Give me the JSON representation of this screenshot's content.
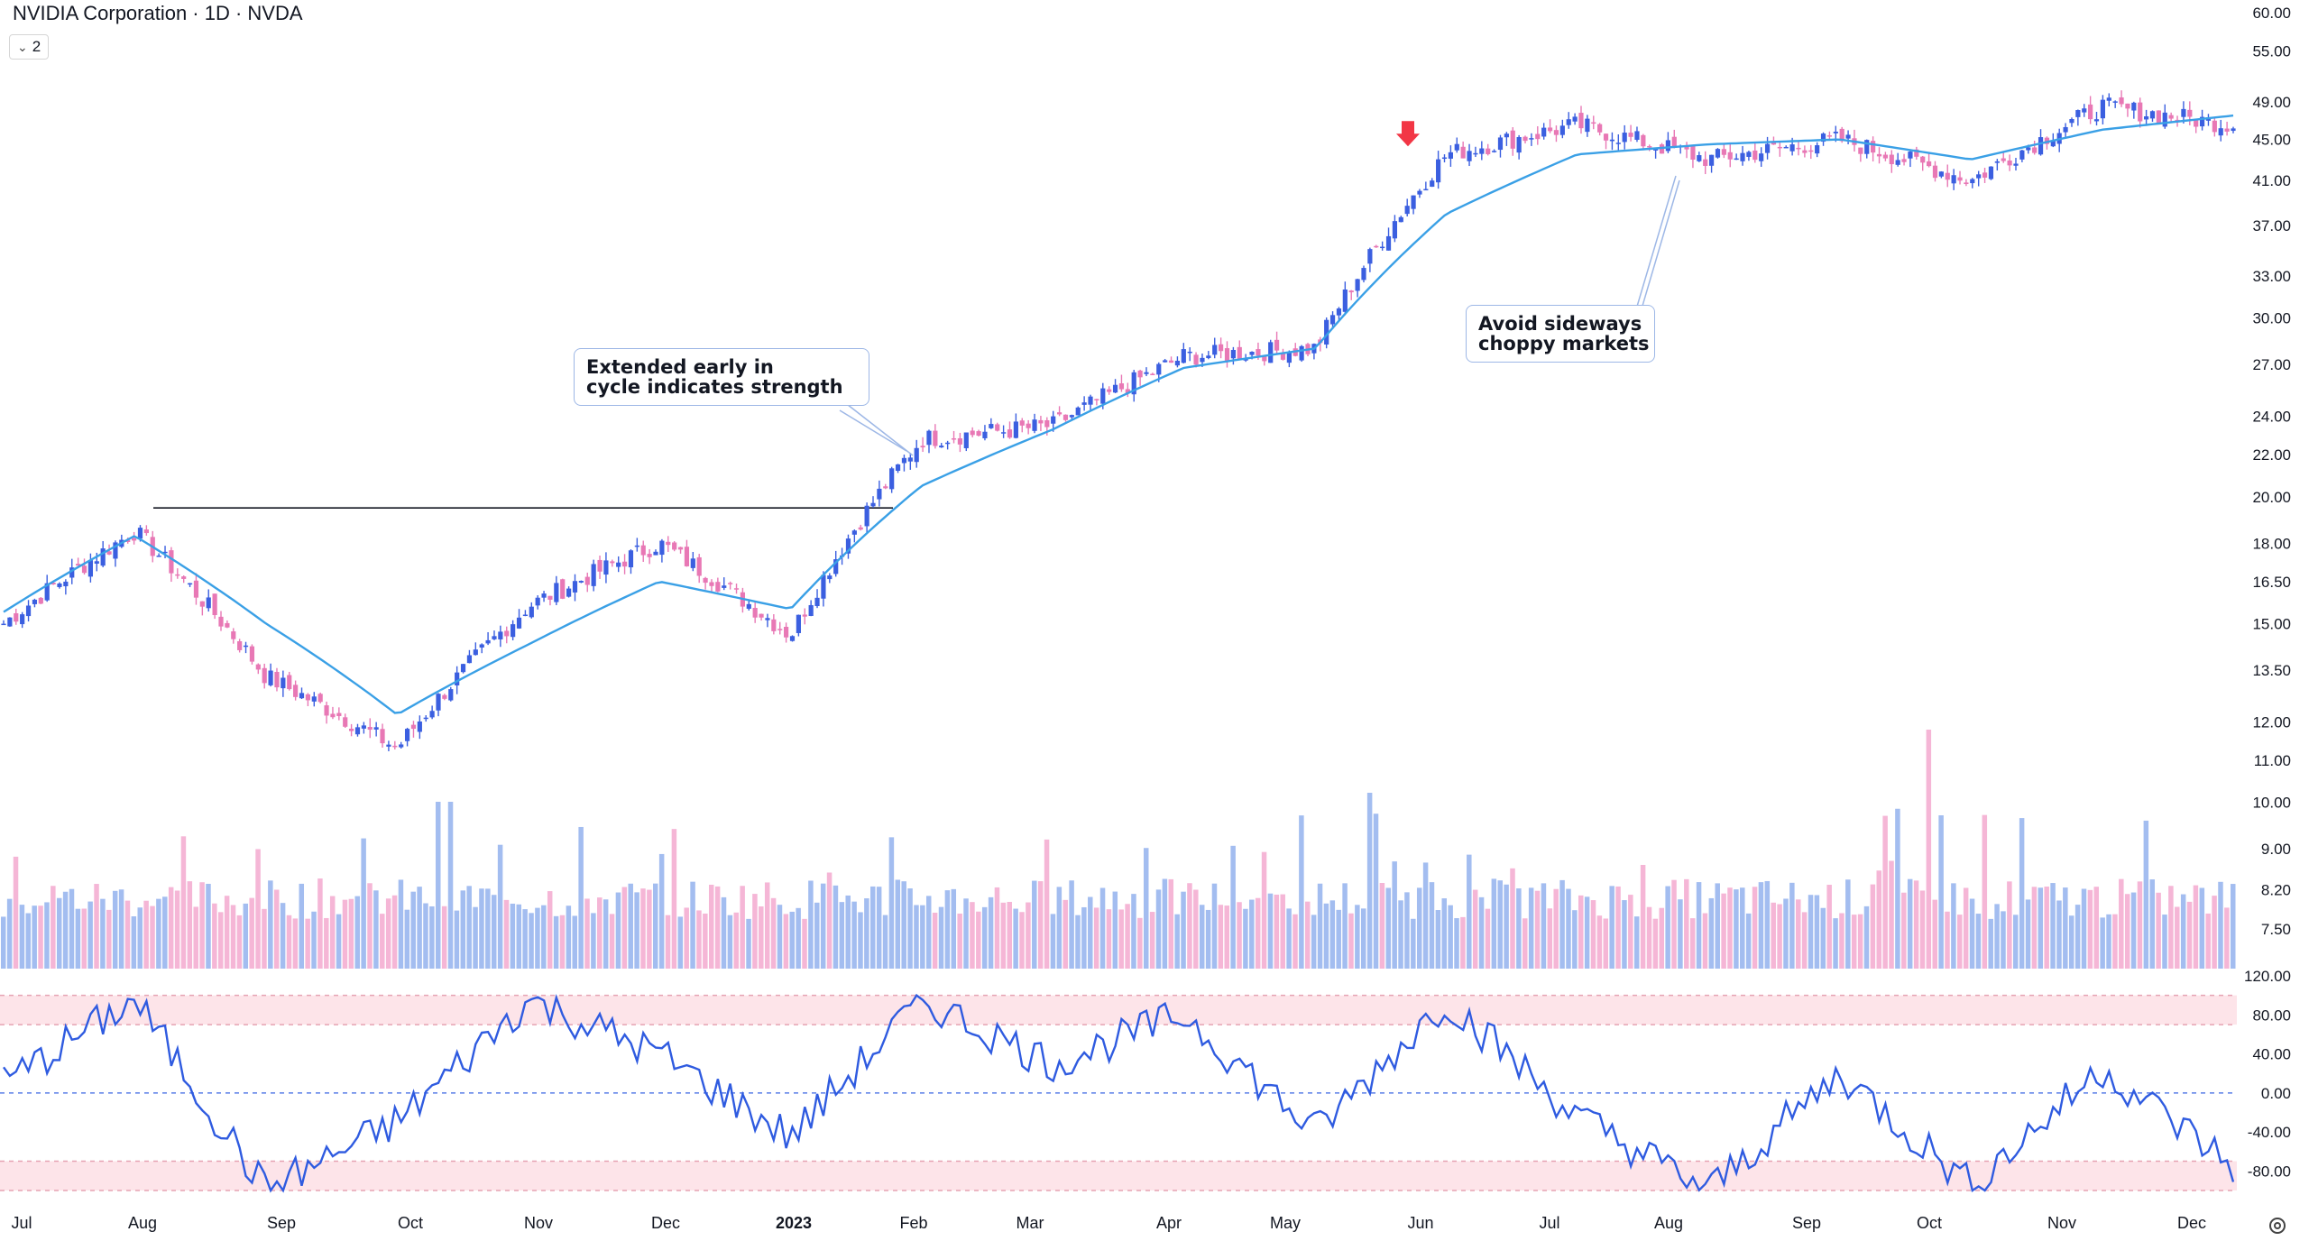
{
  "header": {
    "title": "NVIDIA Corporation · 1D · NVDA",
    "badge_count": "2"
  },
  "annotations": {
    "strength_line1": "Extended early in",
    "strength_line2": "cycle indicates strength",
    "choppy_line1": "Avoid sideways",
    "choppy_line2": "choppy markets"
  },
  "icons": [
    "chevron-down-icon",
    "arrow-down-icon",
    "settings-icon"
  ],
  "colors": {
    "up": "#3b5fe0",
    "down": "#e878b5",
    "ma": "#3aa0e6",
    "volume_up": "#a3bdf0",
    "volume_down": "#f5b6d6",
    "oscillator": "#2f5be0",
    "band": "#fde4e9",
    "marker": "#f23645"
  },
  "chart_data": {
    "type": "candlestick",
    "symbol": "NVDA",
    "interval": "1D",
    "x_axis_labels": [
      "Jul",
      "Aug",
      "Sep",
      "Oct",
      "Nov",
      "Dec",
      "2023",
      "Feb",
      "Mar",
      "Apr",
      "May",
      "Jun",
      "Jul",
      "Aug",
      "Sep",
      "Oct",
      "Nov",
      "Dec"
    ],
    "price_axis": {
      "ticks": [
        "60.00",
        "55.00",
        "49.00",
        "45.00",
        "41.00",
        "37.00",
        "33.00",
        "30.00",
        "27.00",
        "24.00",
        "22.00",
        "20.00",
        "18.00",
        "16.50",
        "15.00",
        "13.50",
        "12.00",
        "11.00",
        "10.00",
        "9.00",
        "8.20",
        "7.50"
      ],
      "scale": "log",
      "range": [
        7.2,
        60
      ]
    },
    "oscillator_axis": {
      "ticks": [
        "120.00",
        "80.00",
        "40.00",
        "0.00",
        "-40.00",
        "-80.00"
      ],
      "range": [
        -100,
        120
      ],
      "overbought_band": [
        70,
        100
      ],
      "oversold_band": [
        -100,
        -70
      ],
      "zero_line": 0
    },
    "price_path": [
      {
        "date": "2022-07",
        "close": 15.0
      },
      {
        "date": "2022-08",
        "close": 18.5
      },
      {
        "date": "2022-09",
        "close": 13.3
      },
      {
        "date": "2022-10",
        "close": 11.3
      },
      {
        "date": "2022-11",
        "close": 15.6
      },
      {
        "date": "2022-12",
        "close": 18.0
      },
      {
        "date": "2023-01",
        "close": 14.6
      },
      {
        "date": "2023-02",
        "close": 22.8
      },
      {
        "date": "2023-03",
        "close": 23.5
      },
      {
        "date": "2023-04",
        "close": 27.5
      },
      {
        "date": "2023-05",
        "close": 28.0
      },
      {
        "date": "2023-06",
        "close": 43.5
      },
      {
        "date": "2023-07",
        "close": 46.5
      },
      {
        "date": "2023-08",
        "close": 43.0
      },
      {
        "date": "2023-09",
        "close": 45.0
      },
      {
        "date": "2023-10",
        "close": 41.0
      },
      {
        "date": "2023-11",
        "close": 48.5
      },
      {
        "date": "2023-12",
        "close": 46.5
      }
    ],
    "moving_average_path": [
      {
        "date": "2022-07",
        "value": 15.4
      },
      {
        "date": "2022-08",
        "value": 18.3
      },
      {
        "date": "2022-09",
        "value": 15.0
      },
      {
        "date": "2022-10",
        "value": 12.2
      },
      {
        "date": "2022-11",
        "value": 14.3
      },
      {
        "date": "2022-12",
        "value": 16.5
      },
      {
        "date": "2023-01",
        "value": 15.5
      },
      {
        "date": "2023-02",
        "value": 20.5
      },
      {
        "date": "2023-03",
        "value": 23.3
      },
      {
        "date": "2023-04",
        "value": 26.8
      },
      {
        "date": "2023-05",
        "value": 28.0
      },
      {
        "date": "2023-06",
        "value": 38.0
      },
      {
        "date": "2023-07",
        "value": 43.5
      },
      {
        "date": "2023-08",
        "value": 44.5
      },
      {
        "date": "2023-09",
        "value": 45.0
      },
      {
        "date": "2023-10",
        "value": 43.0
      },
      {
        "date": "2023-11",
        "value": 46.0
      },
      {
        "date": "2023-12",
        "value": 47.5
      }
    ],
    "horizontal_level": {
      "value": 19.5,
      "from": "2022-08",
      "to": "2023-02"
    },
    "earnings_gap_marker": {
      "date": "2023-05",
      "price": 42.0
    },
    "oscillator_path": [
      {
        "date": "2022-07",
        "value": 10
      },
      {
        "date": "2022-08",
        "value": 95
      },
      {
        "date": "2022-09",
        "value": -100
      },
      {
        "date": "2022-10",
        "value": -30
      },
      {
        "date": "2022-11",
        "value": 95
      },
      {
        "date": "2022-12",
        "value": 40
      },
      {
        "date": "2023-01",
        "value": -45
      },
      {
        "date": "2023-02",
        "value": 95
      },
      {
        "date": "2023-03",
        "value": 30
      },
      {
        "date": "2023-04",
        "value": 80
      },
      {
        "date": "2023-05",
        "value": -40
      },
      {
        "date": "2023-06",
        "value": 95
      },
      {
        "date": "2023-07",
        "value": -25
      },
      {
        "date": "2023-08",
        "value": -100
      },
      {
        "date": "2023-09",
        "value": 20
      },
      {
        "date": "2023-10",
        "value": -95
      },
      {
        "date": "2023-11",
        "value": 25
      },
      {
        "date": "2023-12",
        "value": -75
      }
    ],
    "volume_relative": "daily volume bars colored by candle direction, spikes near Sep 2022, Feb 2023 and late May 2023"
  }
}
